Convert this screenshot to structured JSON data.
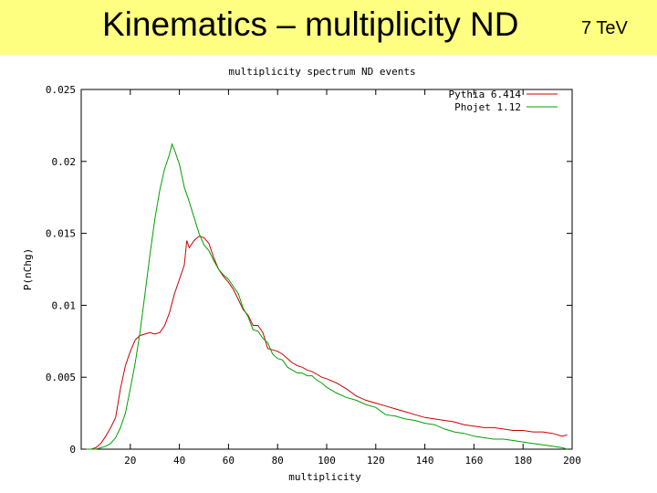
{
  "slide": {
    "title": "Kinematics – multiplicity ND",
    "energy_label": "7 TeV"
  },
  "colors": {
    "title_band": "#fefe80",
    "pythia": "#cc0000",
    "phojet": "#00a000"
  },
  "chart_data": {
    "type": "line",
    "title": "multiplicity spectrum ND events",
    "xlabel": "multiplicity",
    "ylabel": "P(nChg)",
    "xlim": [
      0,
      200
    ],
    "ylim": [
      0,
      0.025
    ],
    "x_ticks": [
      "20",
      "40",
      "60",
      "80",
      "100",
      "120",
      "140",
      "160",
      "180",
      "200"
    ],
    "y_ticks": [
      "0",
      "0.005",
      "0.01",
      "0.015",
      "0.02",
      "0.025"
    ],
    "legend_position": "top-right",
    "grid": false,
    "series": [
      {
        "name": "Pythia 6.414",
        "color": "#cc0000",
        "x": [
          2,
          4,
          6,
          8,
          10,
          12,
          14,
          16,
          18,
          20,
          22,
          24,
          26,
          28,
          30,
          32,
          34,
          36,
          38,
          40,
          42,
          43,
          44,
          46,
          48,
          50,
          52,
          54,
          56,
          58,
          60,
          62,
          64,
          66,
          68,
          70,
          72,
          74,
          76,
          78,
          80,
          82,
          84,
          86,
          88,
          90,
          92,
          94,
          96,
          98,
          100,
          104,
          108,
          112,
          116,
          120,
          124,
          128,
          132,
          136,
          140,
          144,
          148,
          152,
          156,
          160,
          164,
          168,
          172,
          176,
          180,
          184,
          188,
          192,
          196,
          198
        ],
        "y": [
          0,
          0,
          0.0001,
          0.0004,
          0.0009,
          0.0015,
          0.0022,
          0.0042,
          0.0058,
          0.0068,
          0.0076,
          0.0079,
          0.008,
          0.0081,
          0.008,
          0.0081,
          0.0086,
          0.0095,
          0.0108,
          0.0118,
          0.0128,
          0.0145,
          0.014,
          0.0145,
          0.0148,
          0.0147,
          0.0143,
          0.0133,
          0.0125,
          0.012,
          0.0116,
          0.0111,
          0.0104,
          0.0097,
          0.0093,
          0.0086,
          0.0086,
          0.0081,
          0.007,
          0.0069,
          0.0068,
          0.0066,
          0.0063,
          0.006,
          0.0058,
          0.0057,
          0.0055,
          0.0054,
          0.0052,
          0.005,
          0.0049,
          0.0046,
          0.0042,
          0.0037,
          0.0034,
          0.0032,
          0.003,
          0.0028,
          0.0026,
          0.0024,
          0.0022,
          0.0021,
          0.002,
          0.0019,
          0.0017,
          0.0016,
          0.0015,
          0.0015,
          0.0014,
          0.0013,
          0.0013,
          0.0012,
          0.0012,
          0.0011,
          0.0009,
          0.001
        ]
      },
      {
        "name": "Phojet 1.12",
        "color": "#00a000",
        "x": [
          2,
          4,
          6,
          8,
          10,
          12,
          14,
          16,
          18,
          20,
          22,
          24,
          26,
          28,
          30,
          32,
          34,
          36,
          37,
          38,
          40,
          42,
          44,
          46,
          48,
          50,
          52,
          54,
          56,
          58,
          60,
          62,
          64,
          66,
          68,
          70,
          72,
          74,
          76,
          78,
          80,
          82,
          84,
          86,
          88,
          90,
          92,
          94,
          96,
          98,
          100,
          104,
          108,
          112,
          116,
          120,
          124,
          128,
          132,
          136,
          140,
          144,
          148,
          152,
          156,
          160,
          164,
          168,
          172,
          176,
          180,
          184,
          188,
          192,
          196,
          198
        ],
        "y": [
          0,
          0,
          0,
          0.0001,
          0.0002,
          0.0004,
          0.0008,
          0.0015,
          0.0025,
          0.0042,
          0.006,
          0.0082,
          0.0108,
          0.0135,
          0.016,
          0.018,
          0.0195,
          0.0205,
          0.0212,
          0.0208,
          0.0198,
          0.0182,
          0.0172,
          0.0161,
          0.015,
          0.0142,
          0.0138,
          0.0131,
          0.0125,
          0.0121,
          0.0118,
          0.0113,
          0.0108,
          0.0098,
          0.0092,
          0.0083,
          0.0082,
          0.0077,
          0.0074,
          0.0066,
          0.0063,
          0.0062,
          0.0057,
          0.0055,
          0.0053,
          0.0053,
          0.0051,
          0.0051,
          0.0048,
          0.0046,
          0.0043,
          0.0039,
          0.0036,
          0.0034,
          0.0031,
          0.0029,
          0.0024,
          0.0023,
          0.0021,
          0.002,
          0.0018,
          0.0017,
          0.0014,
          0.0012,
          0.0011,
          0.0009,
          0.0008,
          0.0007,
          0.0007,
          0.0006,
          0.0005,
          0.0004,
          0.0003,
          0.0002,
          0.0001,
          0
        ]
      }
    ]
  }
}
